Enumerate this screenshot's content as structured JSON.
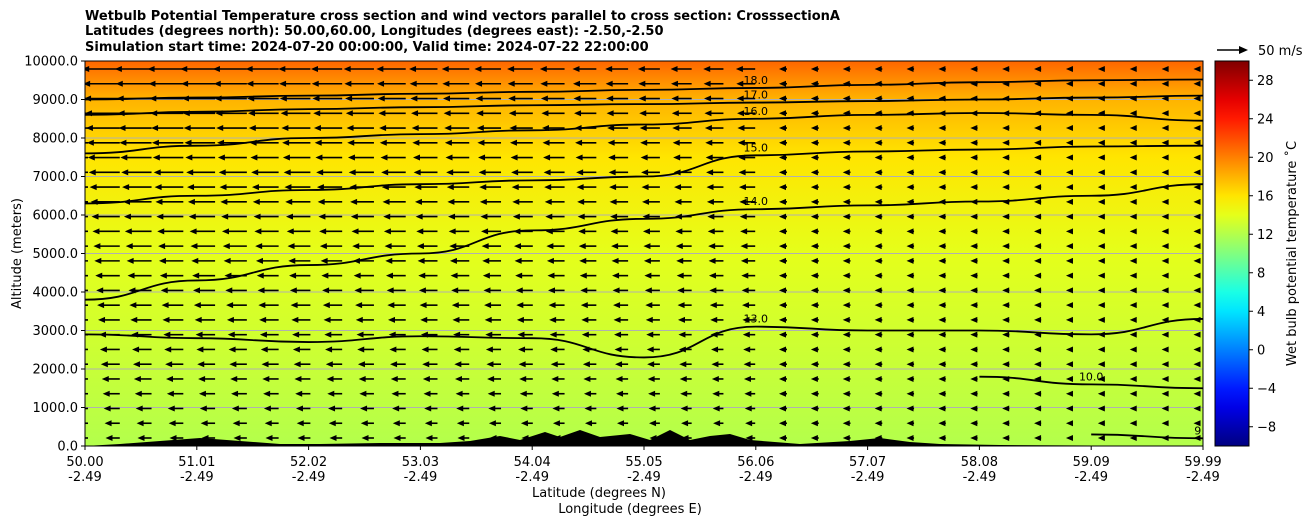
{
  "chart_data": {
    "type": "heatmap",
    "title_lines": [
      "Wetbulb Potential Temperature cross section and wind vectors parallel to cross section: CrosssectionA",
      "Latitudes (degrees north): 50.00,60.00, Longitudes (degrees east): -2.50,-2.50",
      "Simulation start time: 2024-07-20 00:00:00, Valid time: 2024-07-22 22:00:00"
    ],
    "ylabel": "Altitude (meters)",
    "xlabel_lines": [
      "Latitude (degrees N)",
      "Longitude (degrees E)"
    ],
    "ylim": [
      0,
      10000
    ],
    "y_ticks": [
      "0.0",
      "1000.0",
      "2000.0",
      "3000.0",
      "4000.0",
      "5000.0",
      "6000.0",
      "7000.0",
      "8000.0",
      "9000.0",
      "10000.0"
    ],
    "x_ticks": [
      {
        "lat": "50.00",
        "lon": "-2.49"
      },
      {
        "lat": "51.01",
        "lon": "-2.49"
      },
      {
        "lat": "52.02",
        "lon": "-2.49"
      },
      {
        "lat": "53.03",
        "lon": "-2.49"
      },
      {
        "lat": "54.04",
        "lon": "-2.49"
      },
      {
        "lat": "55.05",
        "lon": "-2.49"
      },
      {
        "lat": "56.06",
        "lon": "-2.49"
      },
      {
        "lat": "57.07",
        "lon": "-2.49"
      },
      {
        "lat": "58.08",
        "lon": "-2.49"
      },
      {
        "lat": "59.09",
        "lon": "-2.49"
      },
      {
        "lat": "59.99",
        "lon": "-2.49"
      }
    ],
    "grid": "horizontal",
    "colorbar": {
      "label": "Wet bulb potential temperature ˚C",
      "range": [
        -10,
        30
      ],
      "ticks": [
        "−8",
        "−4",
        "0",
        "4",
        "8",
        "12",
        "16",
        "20",
        "24",
        "28"
      ],
      "colormap": "jet"
    },
    "quiver_key": {
      "label": "50 m/s"
    },
    "contours": [
      {
        "value": 18,
        "label": "18.0",
        "altitudes_m": [
          9000,
          9050,
          9100,
          9150,
          9200,
          9250,
          9300,
          9380,
          9450,
          9500,
          9520
        ]
      },
      {
        "value": 17,
        "label": "17.0",
        "altitudes_m": [
          8600,
          8680,
          8750,
          8800,
          8850,
          8880,
          8920,
          8960,
          9000,
          9050,
          9100
        ]
      },
      {
        "value": 16,
        "label": "16.0",
        "altitudes_m": [
          7600,
          7800,
          8000,
          8100,
          8200,
          8350,
          8500,
          8600,
          8650,
          8600,
          8450
        ]
      },
      {
        "value": 15,
        "label": "15.0",
        "altitudes_m": [
          6300,
          6500,
          6650,
          6800,
          6900,
          7000,
          7550,
          7650,
          7700,
          7780,
          7800
        ]
      },
      {
        "value": 14,
        "label": "14.0",
        "altitudes_m": [
          3800,
          4300,
          4700,
          5000,
          5600,
          5900,
          6150,
          6250,
          6350,
          6500,
          6800
        ]
      },
      {
        "value": 13,
        "label": "13.0",
        "altitudes_m": [
          2900,
          2800,
          2700,
          2850,
          2800,
          2300,
          3100,
          3000,
          3000,
          2900,
          3300
        ]
      },
      {
        "value": 10,
        "label": "10.0",
        "altitudes_m": [
          null,
          null,
          null,
          null,
          null,
          null,
          null,
          null,
          1800,
          1600,
          1500
        ]
      },
      {
        "value": 9,
        "label": "9.0",
        "altitudes_m": [
          null,
          null,
          null,
          null,
          null,
          null,
          null,
          null,
          null,
          300,
          200
        ]
      }
    ],
    "fill_color_stops": [
      {
        "altitude_m": 10000,
        "value": 21
      },
      {
        "altitude_m": 9000,
        "value": 18
      },
      {
        "altitude_m": 7500,
        "value": 16
      },
      {
        "altitude_m": 5000,
        "value": 14
      },
      {
        "altitude_m": 2500,
        "value": 13
      },
      {
        "altitude_m": 0,
        "value": 12
      }
    ],
    "wind": {
      "direction": "southward",
      "strength_note": "strongest aloft in the south"
    }
  }
}
